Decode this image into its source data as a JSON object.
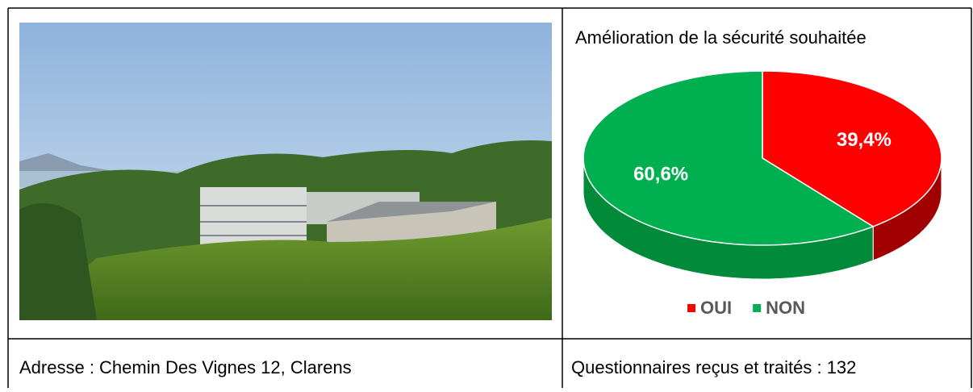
{
  "table": {
    "chart": {
      "type": "pie",
      "title": "Amélioration de la sécurité souhaitée",
      "categories": [
        "OUI",
        "NON"
      ],
      "values": [
        39.4,
        60.6
      ],
      "value_labels": [
        "39,4%",
        "60,6%"
      ],
      "colors": [
        "#ff0000",
        "#00b050"
      ],
      "side_colors": [
        "#a00000",
        "#008a3a"
      ]
    },
    "address": "Adresse : Chemin Des Vignes 12, Clarens",
    "count_text": "Questionnaires reçus et traités : 132"
  }
}
